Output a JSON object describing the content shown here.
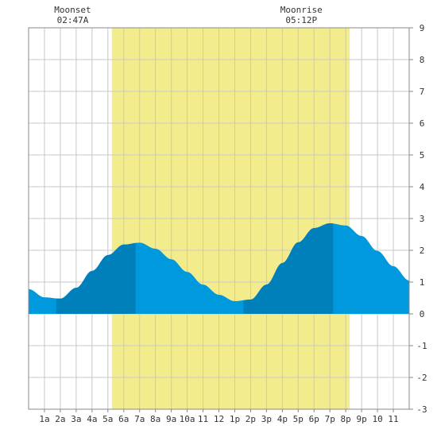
{
  "colors": {
    "daylight": "#f3ec8c",
    "tide_light": "#0099dd",
    "tide_dark": "#0080bb",
    "grid": "#c8c8c8",
    "border": "#888888",
    "background": "#ffffff"
  },
  "moon_events": [
    {
      "label": "Moonset",
      "time": "02:47A",
      "hour": 2.78
    },
    {
      "label": "Moonrise",
      "time": "05:12P",
      "hour": 17.2
    }
  ],
  "chart_data": {
    "type": "area",
    "title": "",
    "xlabel": "",
    "ylabel": "",
    "xlim": [
      0,
      24
    ],
    "ylim": [
      -3,
      9
    ],
    "y_ticks": [
      "9",
      "8",
      "7",
      "6",
      "5",
      "4",
      "3",
      "2",
      "1",
      "0",
      "-1",
      "-2",
      "-3"
    ],
    "x_tick_labels": [
      {
        "hour": 1,
        "label": "1a"
      },
      {
        "hour": 2,
        "label": "2a"
      },
      {
        "hour": 3,
        "label": "3a"
      },
      {
        "hour": 4,
        "label": "4a"
      },
      {
        "hour": 5,
        "label": "5a"
      },
      {
        "hour": 6,
        "label": "6a"
      },
      {
        "hour": 7,
        "label": "7a"
      },
      {
        "hour": 8,
        "label": "8a"
      },
      {
        "hour": 9,
        "label": "9a"
      },
      {
        "hour": 10,
        "label": "10a"
      },
      {
        "hour": 11,
        "label": "11"
      },
      {
        "hour": 12,
        "label": "12"
      },
      {
        "hour": 13,
        "label": "1p"
      },
      {
        "hour": 14,
        "label": "2p"
      },
      {
        "hour": 15,
        "label": "3p"
      },
      {
        "hour": 16,
        "label": "4p"
      },
      {
        "hour": 17,
        "label": "5p"
      },
      {
        "hour": 18,
        "label": "6p"
      },
      {
        "hour": 19,
        "label": "7p"
      },
      {
        "hour": 20,
        "label": "8p"
      },
      {
        "hour": 21,
        "label": "9p"
      },
      {
        "hour": 22,
        "label": "10"
      },
      {
        "hour": 23,
        "label": "11"
      }
    ],
    "daylight": {
      "start_hour": 5.25,
      "end_hour": 20.25
    },
    "tide_extremes": [
      {
        "hour": 1.75,
        "height": 0.45,
        "kind": "low"
      },
      {
        "hour": 6.75,
        "height": 2.25,
        "kind": "high"
      },
      {
        "hour": 13.55,
        "height": 0.38,
        "kind": "low"
      },
      {
        "hour": 19.2,
        "height": 2.85,
        "kind": "high"
      }
    ],
    "series": [
      {
        "type": "area",
        "x": [
          0,
          1,
          2,
          3,
          4,
          5,
          6,
          7,
          8,
          9,
          10,
          11,
          12,
          13,
          14,
          15,
          16,
          17,
          18,
          19,
          20,
          21,
          22,
          23,
          24
        ],
        "values": [
          0.78,
          0.52,
          0.48,
          0.82,
          1.35,
          1.85,
          2.18,
          2.24,
          2.05,
          1.72,
          1.32,
          0.92,
          0.6,
          0.4,
          0.45,
          0.92,
          1.6,
          2.25,
          2.7,
          2.85,
          2.78,
          2.45,
          1.98,
          1.5,
          1.05
        ]
      }
    ],
    "grid": true,
    "legend": "none"
  }
}
